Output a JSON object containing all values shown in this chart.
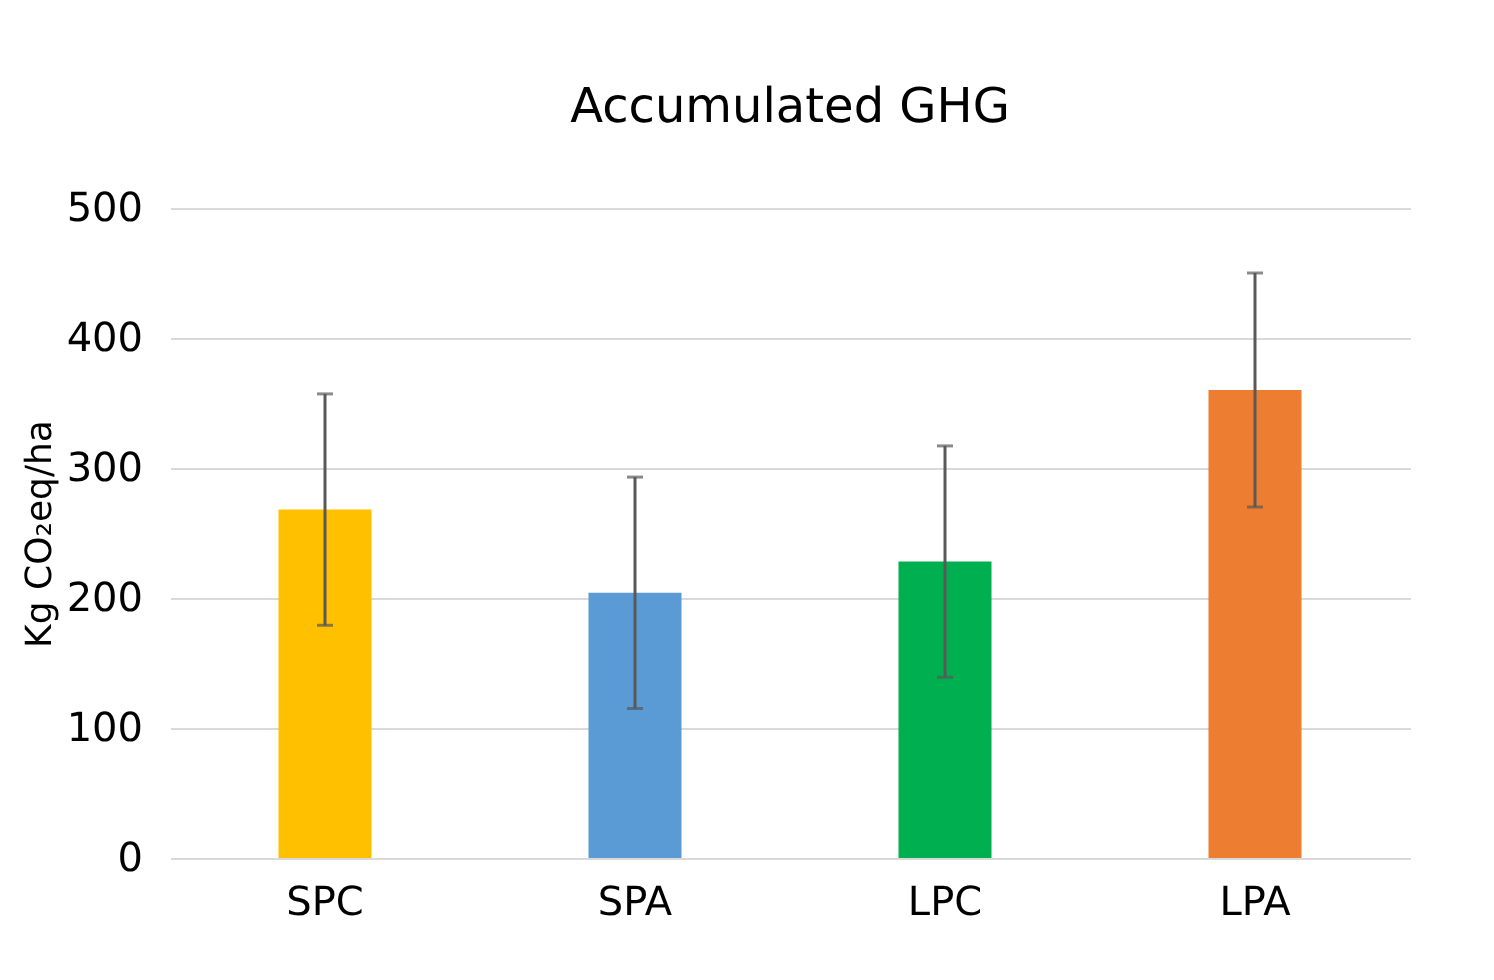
{
  "chart_data": {
    "type": "bar",
    "title": "Accumulated GHG",
    "ylabel": "Kg CO₂eq/ha",
    "categories": [
      "SPC",
      "SPA",
      "LPC",
      "LPA"
    ],
    "values": [
      268,
      204,
      228,
      360
    ],
    "colors": [
      "#ffc000",
      "#5b9bd5",
      "#00b050",
      "#ed7d31"
    ],
    "errors": [
      89,
      89,
      89,
      90
    ],
    "ylim": [
      0,
      500
    ],
    "yticks": [
      0,
      100,
      200,
      300,
      400,
      500
    ],
    "grid": "y"
  }
}
